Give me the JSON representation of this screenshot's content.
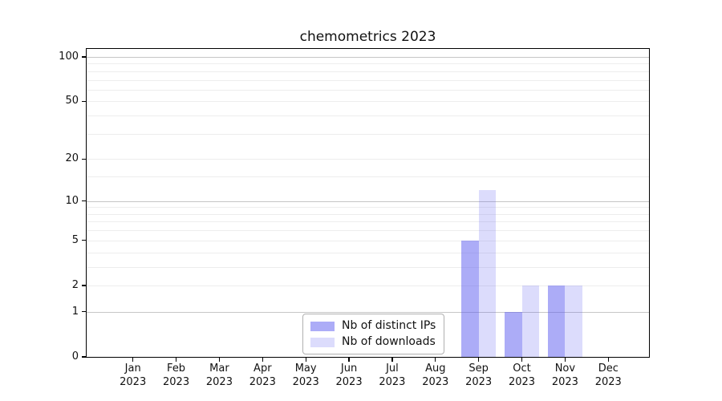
{
  "title": "chemometrics 2023",
  "chart_data": {
    "type": "bar",
    "title": "chemometrics 2023",
    "x_year_label": "2023",
    "categories": [
      "Jan",
      "Feb",
      "Mar",
      "Apr",
      "May",
      "Jun",
      "Jul",
      "Aug",
      "Sep",
      "Oct",
      "Nov",
      "Dec"
    ],
    "series": [
      {
        "name": "Nb of distinct IPs",
        "color": "rgba(90,90,240,0.50)",
        "values": [
          0,
          0,
          0,
          0,
          0,
          0,
          0,
          0,
          5,
          1,
          2,
          0
        ]
      },
      {
        "name": "Nb of downloads",
        "color": "rgba(90,90,240,0.21)",
        "values": [
          0,
          0,
          0,
          0,
          0,
          0,
          0,
          0,
          12,
          2,
          2,
          0
        ]
      }
    ],
    "y_axis": {
      "scale": "log1p",
      "major_ticks": [
        0,
        1,
        2,
        5,
        10,
        20,
        50,
        100
      ],
      "minor_gridline_values": [
        3,
        4,
        6,
        7,
        8,
        9,
        15,
        30,
        40,
        60,
        70,
        80,
        90
      ],
      "ylim_top": 110
    },
    "grid": {
      "major_color": "#c6c6c6",
      "minor_color": "#ededed",
      "emphasized_values": [
        1,
        10,
        100
      ]
    },
    "legend": {
      "position": "lower center"
    }
  }
}
